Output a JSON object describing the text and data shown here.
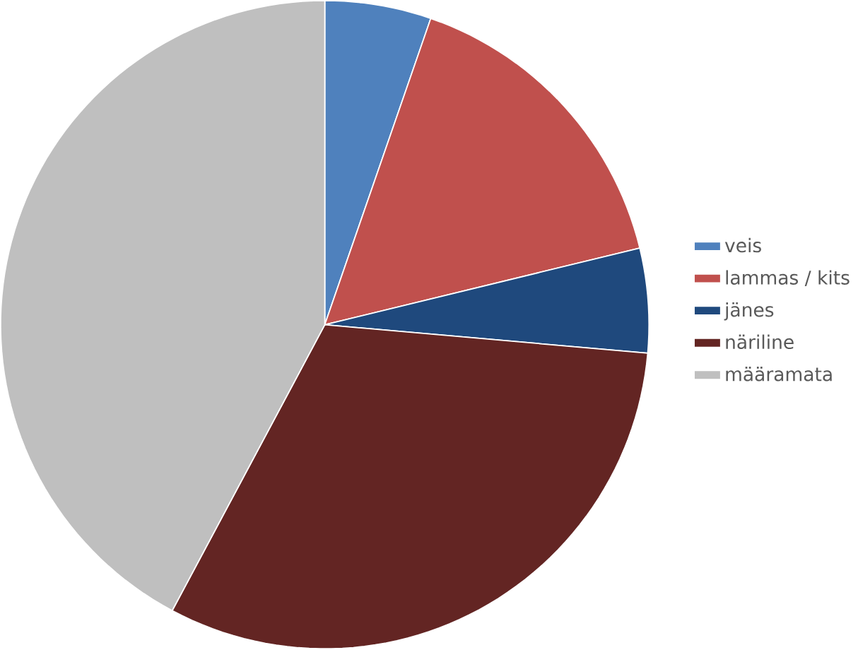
{
  "chart_data": {
    "type": "pie",
    "categories": [
      "veis",
      "lammas / kits",
      "jänes",
      "näriline",
      "määramata"
    ],
    "values": [
      5.3,
      15.9,
      5.2,
      31.4,
      42.2
    ],
    "colors": [
      "#4f81bd",
      "#c0504d",
      "#1f497d",
      "#632523",
      "#bfbfbf"
    ],
    "legend": "right"
  }
}
